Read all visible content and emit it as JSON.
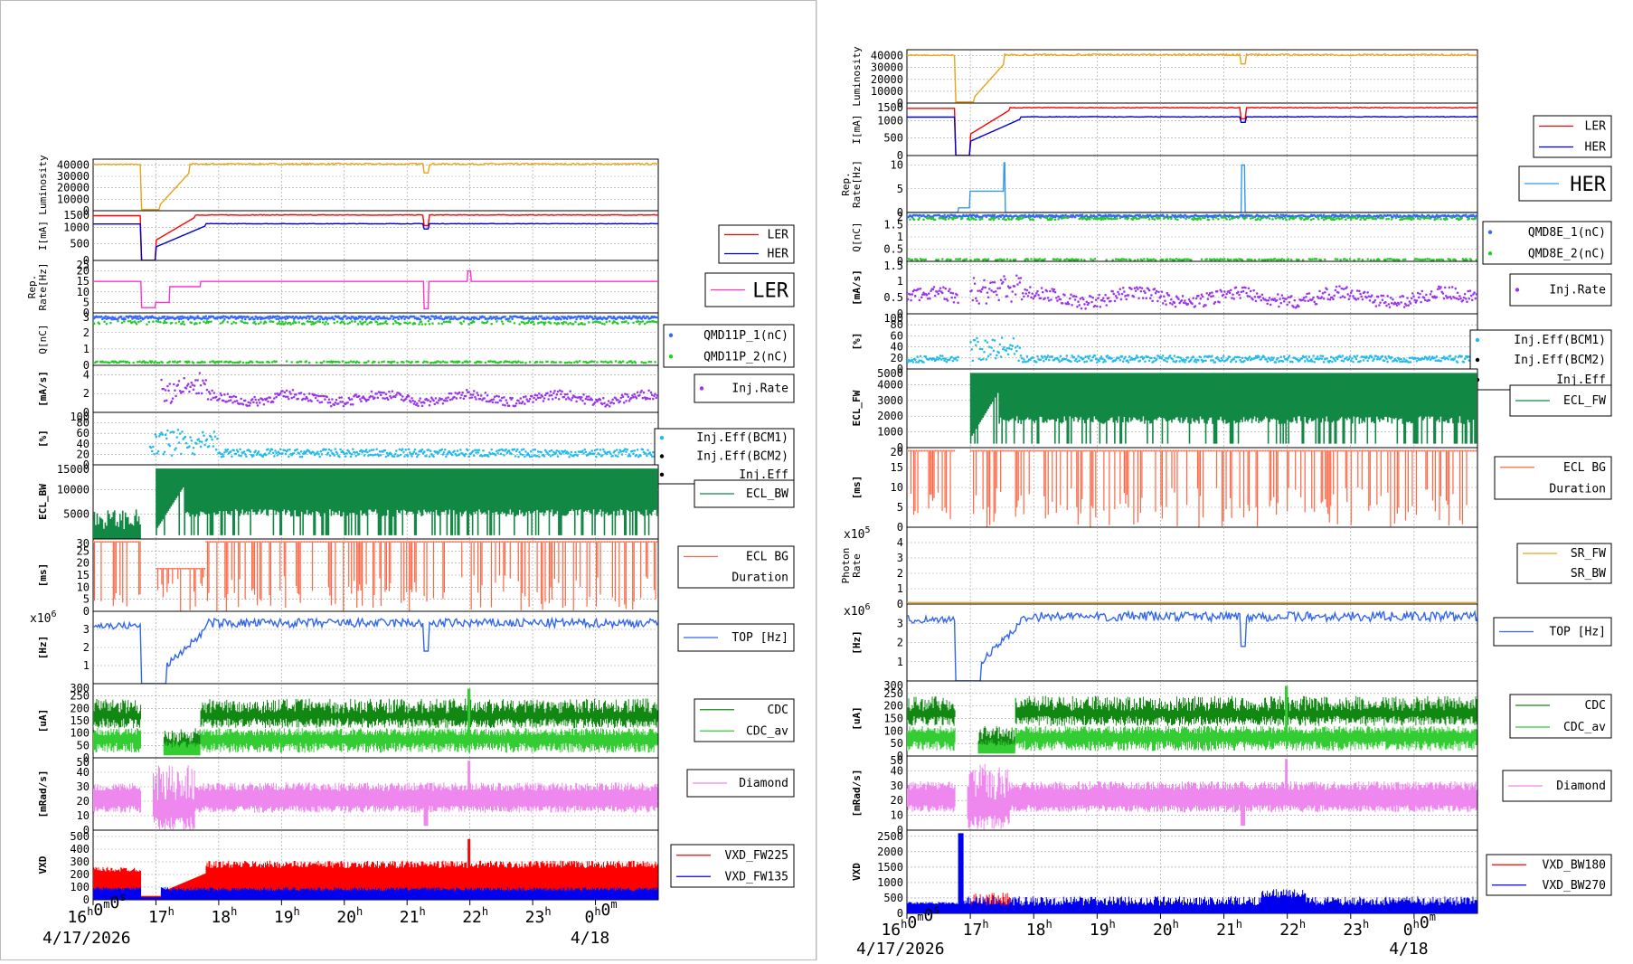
{
  "colors": {
    "luminosity": "#e8a317",
    "ler": "#ff0000",
    "her": "#0000cc",
    "rep": "#ff33cc",
    "rep_her": "#3399ee",
    "qmd1": "#3366ff",
    "qmd2": "#22cc22",
    "inj_rate": "#9933ee",
    "inj_eff": "#22bbee",
    "ecl_bw": "#118844",
    "ecl_bg": "#ff6644",
    "sr_fw": "#e8a317",
    "sr_bw": "#ff3300",
    "top": "#3366ee",
    "cdc": "#118811",
    "cdc_av": "#33cc33",
    "diamond": "#ee88ee",
    "vxd_a": "#0000ee",
    "vxd_b": "#ff0000"
  },
  "time_axis": {
    "ticks": [
      {
        "h": "16",
        "sup": "h",
        "m": "0",
        "sup2": "m",
        "s": "0",
        "sup3": "s"
      },
      {
        "h": "17",
        "sup": "h"
      },
      {
        "h": "18",
        "sup": "h"
      },
      {
        "h": "19",
        "sup": "h"
      },
      {
        "h": "20",
        "sup": "h"
      },
      {
        "h": "21",
        "sup": "h"
      },
      {
        "h": "22",
        "sup": "h"
      },
      {
        "h": "23",
        "sup": "h"
      },
      {
        "h": "0",
        "sup": "h",
        "m": "0",
        "sup2": "m"
      }
    ],
    "date_left": "4/17/2026",
    "date_right": "4/18"
  },
  "chart_data": [
    {
      "type": "line",
      "title": "",
      "time_range": [
        "2026-04-17 16:00",
        "2026-04-18 01:00"
      ],
      "panels": [
        {
          "ylabel": "Luminosity",
          "ylim": [
            0,
            45000
          ],
          "yticks": [
            "40000",
            "30000",
            "20000",
            "10000",
            "0"
          ],
          "legend": [],
          "series": [
            {
              "name": "",
              "color": "luminosity",
              "profile": "lum"
            }
          ]
        },
        {
          "ylabel": "I[mA]",
          "ylim": [
            0,
            1500
          ],
          "yticks": [
            "1500",
            "1000",
            "500",
            "0"
          ],
          "legend": [
            "LER",
            "HER"
          ],
          "series": [
            {
              "name": "LER",
              "color": "ler",
              "profile": "ler"
            },
            {
              "name": "HER",
              "color": "her",
              "profile": "her"
            }
          ]
        },
        {
          "ylabel": "Rep.\nRate[Hz]",
          "ylim": [
            0,
            25
          ],
          "yticks": [
            "25",
            "20",
            "15",
            "10",
            "5",
            "0"
          ],
          "legend": [
            "LER"
          ],
          "big_legend": true,
          "series": [
            {
              "name": "LER",
              "color": "rep",
              "profile": "rep_ler"
            }
          ]
        },
        {
          "ylabel": "Q[nC]",
          "ylim": [
            0,
            3.2
          ],
          "yticks": [
            "3",
            "2",
            "1",
            "0"
          ],
          "legend": [
            "QMD11P_1(nC)",
            "QMD11P_2(nC)"
          ],
          "legend_markers": true,
          "series": [
            {
              "name": "QMD11P_1(nC)",
              "color": "qmd1",
              "profile": "q1"
            },
            {
              "name": "QMD11P_2(nC)",
              "color": "qmd2",
              "profile": "q2"
            }
          ]
        },
        {
          "ylabel": "[mA/s]",
          "ylim": [
            0,
            5
          ],
          "yticks": [
            "4",
            "2",
            "0"
          ],
          "legend": [
            "Inj.Rate"
          ],
          "legend_markers": true,
          "series": [
            {
              "name": "Inj.Rate",
              "color": "inj_rate",
              "profile": "inj"
            }
          ]
        },
        {
          "ylabel": "[%]",
          "ylim": [
            0,
            100
          ],
          "yticks": [
            "100",
            "80",
            "60",
            "40",
            "20",
            "0"
          ],
          "legend": [
            "Inj.Eff(BCM1)",
            "Inj.Eff(BCM2)",
            "Inj.Eff"
          ],
          "legend_markers": true,
          "series": [
            {
              "name": "Inj.Eff",
              "color": "inj_eff",
              "profile": "eff"
            }
          ]
        },
        {
          "ylabel": "ECL_BW",
          "ylim": [
            0,
            15000
          ],
          "yticks": [
            "15000",
            "10000",
            "5000"
          ],
          "legend": [
            "ECL_BW"
          ],
          "series": [
            {
              "name": "ECL_BW",
              "color": "ecl_bw",
              "profile": "ecl"
            }
          ]
        },
        {
          "ylabel": "[ms]",
          "ylim": [
            0,
            30
          ],
          "yticks": [
            "30",
            "25",
            "20",
            "15",
            "10",
            "5",
            "0"
          ],
          "legend": [
            "ECL BG",
            "Duration"
          ],
          "series": [
            {
              "name": "ECL BG Duration",
              "color": "ecl_bg",
              "profile": "eclbg"
            }
          ]
        },
        {
          "ylabel": "[Hz]",
          "exponent": "x10",
          "exp_pow": "6",
          "ylim": [
            0,
            4
          ],
          "yticks": [
            "3",
            "2",
            "1"
          ],
          "legend": [
            "TOP [Hz]"
          ],
          "series": [
            {
              "name": "TOP [Hz]",
              "color": "top",
              "profile": "top"
            }
          ]
        },
        {
          "ylabel": "[uA]",
          "ylim": [
            0,
            300
          ],
          "yticks": [
            "300",
            "250",
            "200",
            "150",
            "100",
            "50",
            "0"
          ],
          "legend": [
            "CDC",
            "CDC_av"
          ],
          "series": [
            {
              "name": "CDC",
              "color": "cdc",
              "profile": "cdc"
            },
            {
              "name": "CDC_av",
              "color": "cdc_av",
              "profile": "cdcav"
            }
          ]
        },
        {
          "ylabel": "[mRad/s]",
          "ylim": [
            0,
            50
          ],
          "yticks": [
            "50",
            "40",
            "30",
            "20",
            "10",
            "0"
          ],
          "legend": [
            "Diamond"
          ],
          "series": [
            {
              "name": "Diamond",
              "color": "diamond",
              "profile": "dia"
            }
          ]
        },
        {
          "ylabel": "VXD",
          "ylim": [
            0,
            550
          ],
          "yticks": [
            "500",
            "400",
            "300",
            "200",
            "100",
            "0"
          ],
          "legend": [
            "VXD_FW225",
            "VXD_FW135"
          ],
          "series": [
            {
              "name": "VXD_FW135",
              "color": "vxd_b",
              "profile": "vxdfw"
            },
            {
              "name": "VXD_FW225",
              "color": "vxd_a",
              "profile": "vxdfw2"
            }
          ]
        }
      ]
    },
    {
      "type": "line",
      "title": "",
      "time_range": [
        "2026-04-17 16:00",
        "2026-04-18 01:00"
      ],
      "panels": [
        {
          "ylabel": "Luminosity",
          "ylim": [
            0,
            45000
          ],
          "yticks": [
            "40000",
            "30000",
            "20000",
            "10000",
            "0"
          ],
          "legend": [],
          "series": [
            {
              "name": "",
              "color": "luminosity",
              "profile": "lum"
            }
          ]
        },
        {
          "ylabel": "I[mA]",
          "ylim": [
            0,
            1500
          ],
          "yticks": [
            "1500",
            "1000",
            "500",
            "0"
          ],
          "legend": [
            "LER",
            "HER"
          ],
          "series": [
            {
              "name": "LER",
              "color": "ler",
              "profile": "ler"
            },
            {
              "name": "HER",
              "color": "her",
              "profile": "her"
            }
          ]
        },
        {
          "ylabel": "Rep.\nRate[Hz]",
          "ylim": [
            0,
            12
          ],
          "yticks": [
            "10",
            "5",
            "0"
          ],
          "legend": [
            "HER"
          ],
          "big_legend": true,
          "series": [
            {
              "name": "HER",
              "color": "rep_her",
              "profile": "rep_her"
            }
          ]
        },
        {
          "ylabel": "Q[nC]",
          "ylim": [
            0,
            2
          ],
          "yticks": [
            "2",
            "1.5",
            "1",
            "0.5",
            "0"
          ],
          "legend": [
            "QMD8E_1(nC)",
            "QMD8E_2(nC)"
          ],
          "legend_markers": true,
          "series": [
            {
              "name": "QMD8E_1(nC)",
              "color": "qmd1",
              "profile": "q1b"
            },
            {
              "name": "QMD8E_2(nC)",
              "color": "qmd2",
              "profile": "q2b"
            }
          ]
        },
        {
          "ylabel": "[mA/s]",
          "ylim": [
            0,
            1.6
          ],
          "yticks": [
            "1.5",
            "1",
            "0.5",
            "0"
          ],
          "legend": [
            "Inj.Rate"
          ],
          "legend_markers": true,
          "series": [
            {
              "name": "Inj.Rate",
              "color": "inj_rate",
              "profile": "injb"
            }
          ]
        },
        {
          "ylabel": "[%]",
          "ylim": [
            0,
            100
          ],
          "yticks": [
            "100",
            "80",
            "60",
            "40",
            "20",
            "0"
          ],
          "legend": [
            "Inj.Eff(BCM1)",
            "Inj.Eff(BCM2)",
            "Inj.Eff"
          ],
          "legend_markers": true,
          "series": [
            {
              "name": "Inj.Eff",
              "color": "inj_eff",
              "profile": "effb"
            }
          ]
        },
        {
          "ylabel": "ECL_FW",
          "ylim": [
            0,
            5000
          ],
          "yticks": [
            "5000",
            "4000",
            "3000",
            "2000",
            "1000",
            "0"
          ],
          "legend": [
            "ECL_FW"
          ],
          "series": [
            {
              "name": "ECL_FW",
              "color": "ecl_bw",
              "profile": "eclfw"
            }
          ]
        },
        {
          "ylabel": "[ms]",
          "ylim": [
            0,
            20
          ],
          "yticks": [
            "20",
            "15",
            "10",
            "5",
            "0"
          ],
          "legend": [
            "ECL BG",
            "Duration"
          ],
          "series": [
            {
              "name": "ECL BG Duration",
              "color": "ecl_bg",
              "profile": "eclbg2"
            }
          ]
        },
        {
          "ylabel": "Photon\nRate",
          "exponent": "x10",
          "exp_pow": "5",
          "ylim": [
            0,
            5
          ],
          "yticks": [
            "4",
            "3",
            "2",
            "1",
            "0"
          ],
          "legend": [
            "SR_FW",
            "SR_BW"
          ],
          "series": [
            {
              "name": "SR_FW",
              "color": "sr_fw",
              "profile": "sr"
            }
          ]
        },
        {
          "ylabel": "[Hz]",
          "exponent": "x10",
          "exp_pow": "6",
          "ylim": [
            0,
            4
          ],
          "yticks": [
            "3",
            "2",
            "1"
          ],
          "legend": [
            "TOP [Hz]"
          ],
          "series": [
            {
              "name": "TOP [Hz]",
              "color": "top",
              "profile": "top"
            }
          ]
        },
        {
          "ylabel": "[uA]",
          "ylim": [
            0,
            300
          ],
          "yticks": [
            "300",
            "250",
            "200",
            "150",
            "100",
            "50",
            "0"
          ],
          "legend": [
            "CDC",
            "CDC_av"
          ],
          "series": [
            {
              "name": "CDC",
              "color": "cdc",
              "profile": "cdc"
            },
            {
              "name": "CDC_av",
              "color": "cdc_av",
              "profile": "cdcav"
            }
          ]
        },
        {
          "ylabel": "[mRad/s]",
          "ylim": [
            0,
            50
          ],
          "yticks": [
            "50",
            "40",
            "30",
            "20",
            "10",
            "0"
          ],
          "legend": [
            "Diamond"
          ],
          "series": [
            {
              "name": "Diamond",
              "color": "diamond",
              "profile": "dia"
            }
          ]
        },
        {
          "ylabel": "VXD",
          "ylim": [
            0,
            2700
          ],
          "yticks": [
            "2500",
            "2000",
            "1500",
            "1000",
            "500",
            "0"
          ],
          "legend": [
            "VXD_BW180",
            "VXD_BW270"
          ],
          "series": [
            {
              "name": "VXD_BW180",
              "color": "vxd_b",
              "profile": "vxdbw"
            },
            {
              "name": "VXD_BW270",
              "color": "vxd_a",
              "profile": "vxdbw2"
            }
          ]
        }
      ]
    }
  ]
}
